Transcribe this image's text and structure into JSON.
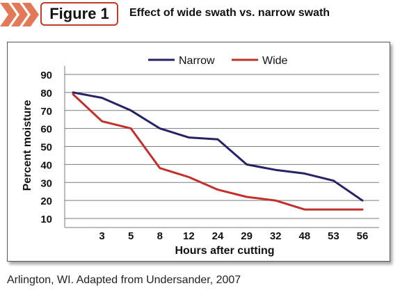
{
  "header": {
    "figure_label": "Figure 1",
    "title": "Effect of wide swath vs. narrow swath"
  },
  "caption": "Arlington, WI.  Adapted from Undersander, 2007",
  "colors": {
    "narrow": "#262266",
    "wide": "#c1302a",
    "accent": "#e27a5a",
    "grid": "#7a7a7a"
  },
  "chart_data": {
    "type": "line",
    "categories": [
      "",
      "3",
      "5",
      "8",
      "12",
      "24",
      "29",
      "32",
      "48",
      "53",
      "56"
    ],
    "series": [
      {
        "name": "Narrow",
        "values": [
          80,
          77,
          70,
          60,
          55,
          54,
          40,
          37,
          35,
          31,
          20
        ]
      },
      {
        "name": "Wide",
        "values": [
          79,
          64,
          60,
          38,
          33,
          26,
          22,
          20,
          15,
          15,
          15
        ]
      }
    ],
    "title": "",
    "xlabel": "Hours after cutting",
    "ylabel": "Percent moisture",
    "yticks": [
      10,
      20,
      30,
      40,
      50,
      60,
      70,
      80,
      90
    ],
    "ylim": [
      5,
      90
    ],
    "grid": true,
    "legend": "top-center"
  }
}
